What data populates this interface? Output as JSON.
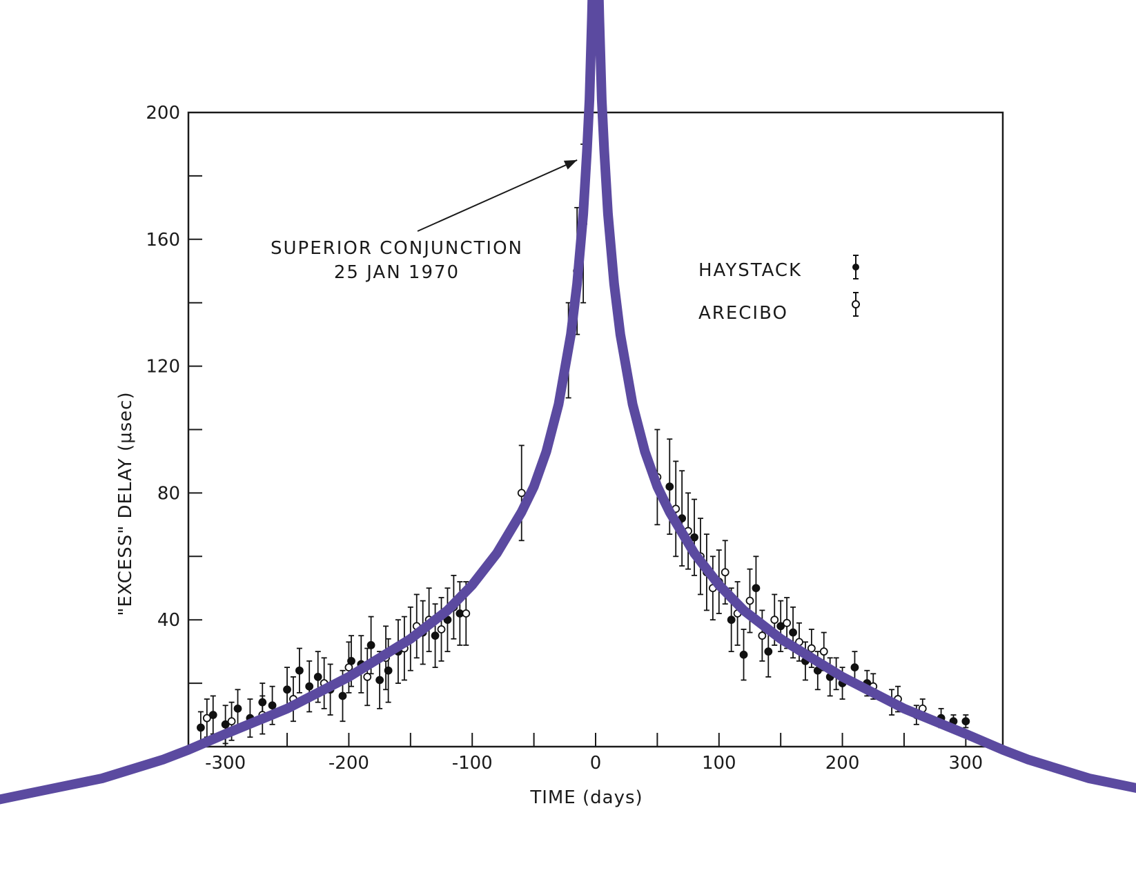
{
  "chart_data": {
    "type": "scatter",
    "title": "",
    "xlabel": "TIME (days)",
    "ylabel": "\"EXCESS\" DELAY (μsec)",
    "xlim": [
      -330,
      330
    ],
    "ylim": [
      0,
      200
    ],
    "x_ticks": [
      -300,
      -200,
      -100,
      0,
      100,
      200,
      300
    ],
    "y_ticks": [
      40,
      80,
      120,
      160,
      200
    ],
    "x_minor_ticks": [
      -250,
      -150,
      -50,
      50,
      150,
      250
    ],
    "y_minor_ticks": [
      20,
      60,
      100,
      140,
      180
    ],
    "grid": false,
    "legend_position": "top-right",
    "annotation": {
      "lines": [
        "SUPERIOR CONJUNCTION",
        "25 JAN 1970"
      ],
      "points_to": {
        "x": -15,
        "y": 185
      }
    },
    "series": [
      {
        "name": "HAYSTACK",
        "marker": "filled-circle",
        "color": "#111111",
        "x": [
          -320,
          -310,
          -300,
          -290,
          -280,
          -270,
          -262,
          -250,
          -240,
          -232,
          -225,
          -215,
          -205,
          -198,
          -190,
          -182,
          -175,
          -168,
          -160,
          -150,
          -140,
          -130,
          -120,
          -110,
          -22,
          -15,
          -10,
          60,
          70,
          80,
          90,
          100,
          110,
          120,
          130,
          140,
          150,
          160,
          170,
          180,
          190,
          200,
          210,
          220,
          240,
          260,
          280,
          290,
          300
        ],
        "y": [
          6,
          10,
          7,
          12,
          9,
          14,
          13,
          18,
          24,
          19,
          22,
          18,
          16,
          27,
          26,
          32,
          21,
          24,
          30,
          34,
          36,
          35,
          40,
          42,
          125,
          150,
          165,
          82,
          72,
          66,
          55,
          52,
          40,
          29,
          50,
          30,
          38,
          36,
          27,
          24,
          22,
          20,
          25,
          20,
          14,
          10,
          9,
          8,
          8
        ],
        "error": [
          5,
          6,
          6,
          6,
          6,
          6,
          6,
          7,
          7,
          8,
          8,
          8,
          8,
          8,
          9,
          9,
          9,
          10,
          10,
          10,
          10,
          10,
          10,
          10,
          15,
          20,
          25,
          15,
          15,
          12,
          12,
          10,
          10,
          8,
          10,
          8,
          8,
          8,
          6,
          6,
          6,
          5,
          5,
          4,
          4,
          3,
          3,
          2,
          2
        ]
      },
      {
        "name": "ARECIBO",
        "marker": "open-circle",
        "color": "#111111",
        "x": [
          -315,
          -295,
          -270,
          -245,
          -220,
          -200,
          -185,
          -170,
          -155,
          -145,
          -135,
          -125,
          -115,
          -105,
          -60,
          50,
          65,
          75,
          85,
          95,
          105,
          115,
          125,
          135,
          145,
          155,
          165,
          175,
          185,
          195,
          225,
          245,
          265
        ],
        "y": [
          9,
          8,
          10,
          15,
          20,
          25,
          22,
          28,
          31,
          38,
          40,
          37,
          44,
          42,
          80,
          85,
          75,
          68,
          60,
          50,
          55,
          42,
          46,
          35,
          40,
          39,
          33,
          31,
          30,
          23,
          19,
          15,
          12
        ],
        "error": [
          6,
          6,
          6,
          7,
          8,
          8,
          9,
          10,
          10,
          10,
          10,
          10,
          10,
          10,
          15,
          15,
          15,
          12,
          12,
          10,
          10,
          10,
          10,
          8,
          8,
          8,
          6,
          6,
          6,
          5,
          4,
          4,
          3
        ]
      }
    ]
  },
  "theory_curve": {
    "color": "#5b4aa0",
    "x": [
      -500,
      -450,
      -400,
      -350,
      -330,
      -300,
      -250,
      -200,
      -150,
      -120,
      -100,
      -80,
      -60,
      -50,
      -40,
      -30,
      -20,
      -15,
      -10,
      -7,
      -5,
      -3,
      -2,
      0,
      2,
      3,
      5,
      7,
      10,
      15,
      20,
      30,
      40,
      50,
      60,
      80,
      100,
      120,
      150,
      200,
      250,
      300,
      330,
      350,
      400,
      450,
      500
    ],
    "y": [
      -18,
      -14,
      -10,
      -4,
      -1,
      4,
      12,
      22,
      34,
      43,
      51,
      61,
      74,
      82,
      93,
      108,
      130,
      146,
      168,
      188,
      204,
      230,
      246,
      260,
      246,
      230,
      204,
      188,
      168,
      146,
      130,
      108,
      93,
      82,
      74,
      61,
      51,
      43,
      34,
      22,
      12,
      4,
      -1,
      -4,
      -10,
      -14,
      -18
    ]
  }
}
